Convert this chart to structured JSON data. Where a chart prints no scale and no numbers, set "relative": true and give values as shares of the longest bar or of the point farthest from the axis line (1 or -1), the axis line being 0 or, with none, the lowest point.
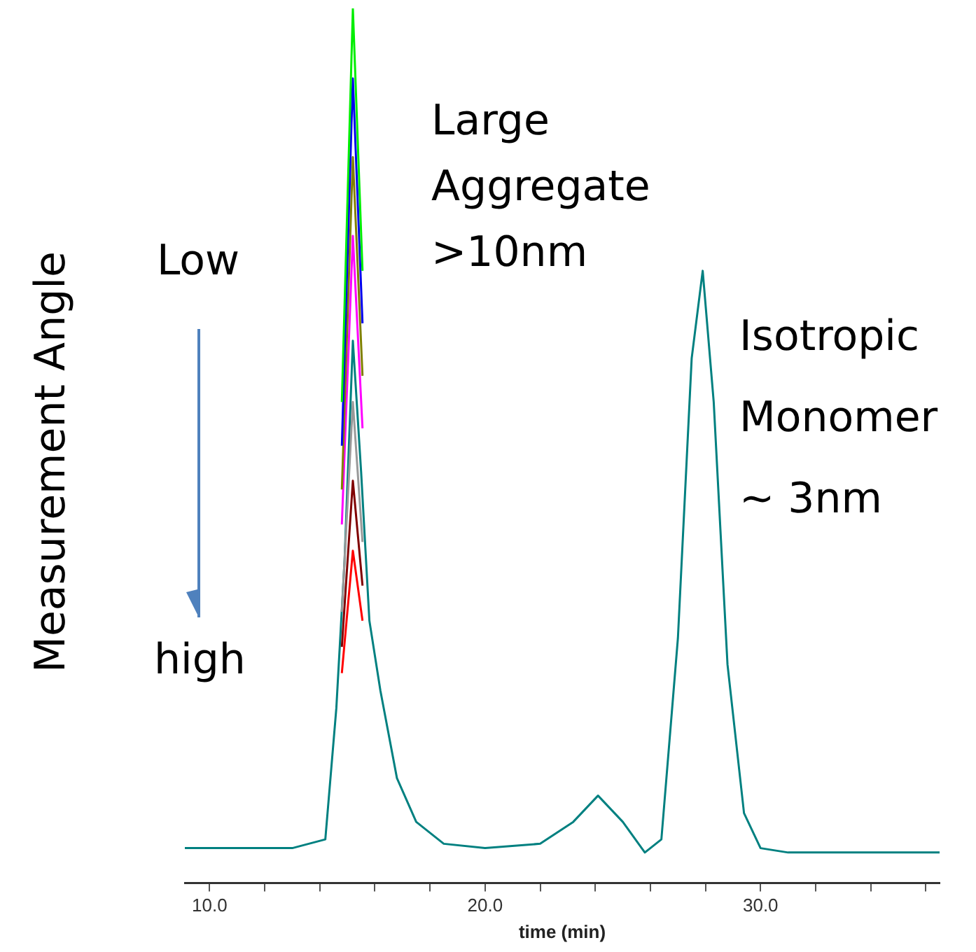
{
  "chart_data": {
    "type": "line",
    "relative": true,
    "xlabel": "time (min)",
    "ylabel": "Measurement Angle",
    "marker": "none",
    "grid": false,
    "legend": false,
    "xlim": [
      9.1,
      36.5
    ],
    "xticks": [
      {
        "value": 10,
        "label": "10.0"
      },
      {
        "value": 12,
        "label": null
      },
      {
        "value": 14,
        "label": null
      },
      {
        "value": 16,
        "label": null
      },
      {
        "value": 18,
        "label": null
      },
      {
        "value": 20,
        "label": "20.0"
      },
      {
        "value": 22,
        "label": null
      },
      {
        "value": 24,
        "label": null
      },
      {
        "value": 26,
        "label": null
      },
      {
        "value": 28,
        "label": null
      },
      {
        "value": 30,
        "label": "30.0"
      },
      {
        "value": 32,
        "label": null
      },
      {
        "value": 34,
        "label": null
      },
      {
        "value": 36,
        "label": null
      }
    ],
    "annotations": [
      "Large\nAggregate\n>10nm",
      "Isotropic\nMonomer\n~ 3nm",
      "Low",
      "high"
    ],
    "x": [
      9.1,
      13,
      14.2,
      14.6,
      14.9,
      15.2,
      15.5,
      15.8,
      16.2,
      16.8,
      17.5,
      18.5,
      20,
      22,
      23.2,
      24.1,
      25,
      25.8,
      26.4,
      27,
      27.5,
      27.9,
      28.3,
      28.8,
      29.4,
      30,
      31,
      33,
      36.5
    ],
    "series": [
      {
        "color": "#00ee00",
        "x": [
          14.8,
          15.2,
          15.55
        ],
        "values": [
          0.55,
          1.0,
          0.7
        ]
      },
      {
        "color": "#0000ee",
        "x": [
          14.8,
          15.2,
          15.55
        ],
        "values": [
          0.5,
          0.92,
          0.64
        ]
      },
      {
        "color": "#808000",
        "x": [
          14.8,
          15.2,
          15.55
        ],
        "values": [
          0.45,
          0.83,
          0.58
        ]
      },
      {
        "color": "#ff00ff",
        "x": [
          14.8,
          15.2,
          15.55
        ],
        "values": [
          0.41,
          0.74,
          0.52
        ]
      },
      {
        "color": "#999999",
        "x": [
          14.8,
          15.2,
          15.55
        ],
        "values": [
          0.31,
          0.55,
          0.39
        ]
      },
      {
        "color": "#800000",
        "x": [
          14.8,
          15.2,
          15.55
        ],
        "values": [
          0.27,
          0.46,
          0.34
        ]
      },
      {
        "color": "#ff0000",
        "x": [
          14.8,
          15.2,
          15.55
        ],
        "values": [
          0.24,
          0.38,
          0.3
        ]
      },
      {
        "color": "#008080",
        "values": [
          0.04,
          0.04,
          0.05,
          0.2,
          0.37,
          0.62,
          0.47,
          0.3,
          0.22,
          0.12,
          0.07,
          0.045,
          0.04,
          0.045,
          0.07,
          0.1,
          0.07,
          0.035,
          0.05,
          0.28,
          0.6,
          0.7,
          0.55,
          0.25,
          0.08,
          0.04,
          0.035,
          0.035,
          0.035
        ]
      }
    ]
  }
}
